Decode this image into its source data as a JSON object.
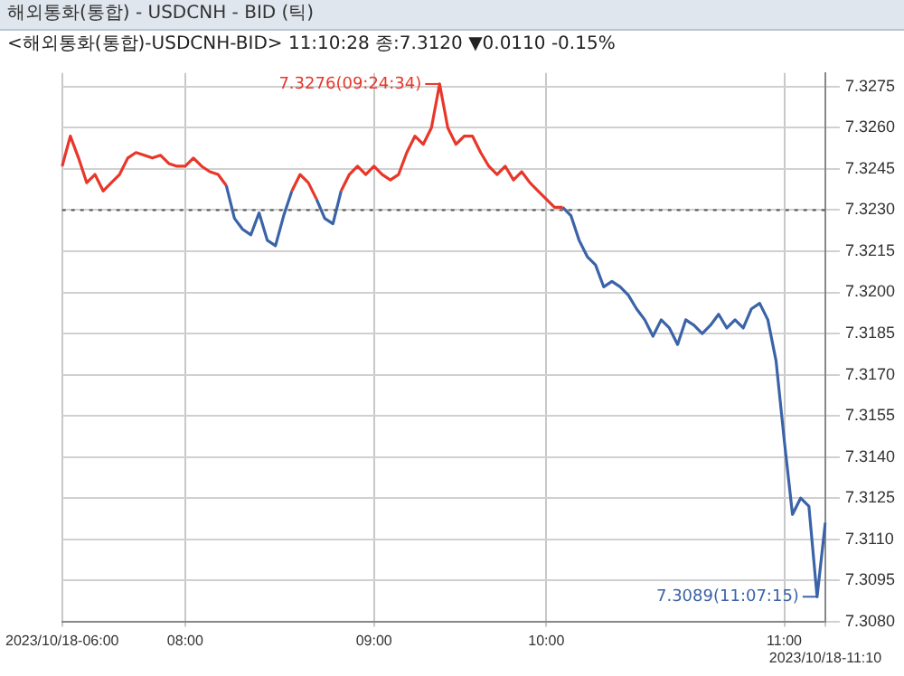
{
  "chart_data": {
    "type": "line",
    "title": "해외통화(통합) - USDCNH - BID (틱)",
    "subtitle": "<해외통화(통합)-USDCNH-BID> 11:10:28 종:7.3120 ▼0.0110 -0.15%",
    "categories": [
      "2023/10/18-06:00",
      null,
      null,
      null,
      null,
      null,
      null,
      null,
      null,
      null,
      null,
      null,
      null,
      null,
      null,
      "08:00",
      null,
      null,
      null,
      null,
      null,
      null,
      null,
      null,
      null,
      null,
      null,
      null,
      null,
      null,
      null,
      null,
      null,
      null,
      null,
      null,
      null,
      null,
      "09:00",
      null,
      null,
      null,
      null,
      null,
      null,
      null,
      null,
      null,
      null,
      null,
      null,
      null,
      null,
      null,
      null,
      null,
      null,
      null,
      null,
      "10:00",
      null,
      null,
      null,
      null,
      null,
      null,
      null,
      null,
      null,
      null,
      null,
      null,
      null,
      null,
      null,
      null,
      null,
      null,
      null,
      null,
      null,
      null,
      null,
      null,
      null,
      null,
      null,
      null,
      "11:00",
      null,
      null,
      null,
      null,
      "2023/10/18-11:10"
    ],
    "series": [
      {
        "color": "#e8372a",
        "values": [
          7.3246,
          7.3257,
          7.3249,
          7.324,
          7.3243,
          7.3237,
          7.324,
          7.3243,
          7.3249,
          7.3251,
          7.325,
          7.3249,
          7.325,
          7.3247,
          7.3246,
          7.3246,
          7.3249,
          7.3246,
          7.3244,
          7.3243,
          7.3239,
          null,
          null,
          null,
          null,
          null,
          null,
          null,
          7.3237,
          7.3243,
          7.324,
          7.3234,
          null,
          null,
          7.3237,
          7.3243,
          7.3246,
          7.3243,
          7.3246,
          7.3243,
          7.3241,
          7.3243,
          7.3251,
          7.3257,
          7.3254,
          7.326,
          7.3276,
          7.326,
          7.3254,
          7.3257,
          7.3257,
          7.3251,
          7.3246,
          7.3243,
          7.3246,
          7.3241,
          7.3244,
          7.324,
          7.3237,
          7.3234,
          7.3231,
          7.3231,
          null,
          null,
          null,
          null,
          null,
          null,
          null,
          null,
          null,
          null,
          null,
          null,
          null,
          null,
          null,
          null,
          null,
          null,
          null,
          null,
          null,
          null,
          null,
          null,
          null,
          null,
          null,
          null,
          null,
          null,
          null,
          null
        ]
      },
      {
        "color": "#3b63a8",
        "values": [
          null,
          null,
          null,
          null,
          null,
          null,
          null,
          null,
          null,
          null,
          null,
          null,
          null,
          null,
          null,
          null,
          null,
          null,
          null,
          null,
          7.3239,
          7.3227,
          7.3223,
          7.3221,
          7.3229,
          7.3219,
          7.3217,
          7.3228,
          7.3237,
          null,
          null,
          7.3234,
          7.3227,
          7.3225,
          7.3237,
          null,
          null,
          null,
          null,
          null,
          null,
          null,
          null,
          null,
          null,
          null,
          null,
          null,
          null,
          null,
          null,
          null,
          null,
          null,
          null,
          null,
          null,
          null,
          null,
          null,
          null,
          7.3231,
          7.3228,
          7.3219,
          7.3213,
          7.321,
          7.3202,
          7.3204,
          7.3202,
          7.3199,
          7.3194,
          7.319,
          7.3184,
          7.319,
          7.3187,
          7.3181,
          7.319,
          7.3188,
          7.3185,
          7.3188,
          7.3192,
          7.3187,
          7.319,
          7.3187,
          7.3194,
          7.3196,
          7.319,
          7.3175,
          7.3146,
          7.3119,
          7.3125,
          7.3122,
          7.3089,
          7.3116
        ]
      }
    ],
    "ylim": [
      7.308,
      7.328
    ],
    "yticks": [
      {
        "value": 7.308,
        "label": "7.3080"
      },
      {
        "value": 7.3095,
        "label": "7.3095"
      },
      {
        "value": 7.311,
        "label": "7.3110"
      },
      {
        "value": 7.3125,
        "label": "7.3125"
      },
      {
        "value": 7.314,
        "label": "7.3140"
      },
      {
        "value": 7.3155,
        "label": "7.3155"
      },
      {
        "value": 7.317,
        "label": "7.3170"
      },
      {
        "value": 7.3185,
        "label": "7.3185"
      },
      {
        "value": 7.32,
        "label": "7.3200"
      },
      {
        "value": 7.3215,
        "label": "7.3215"
      },
      {
        "value": 7.323,
        "label": "7.3230"
      },
      {
        "value": 7.3245,
        "label": "7.3245"
      },
      {
        "value": 7.326,
        "label": "7.3260"
      },
      {
        "value": 7.3275,
        "label": "7.3275"
      }
    ],
    "ref_lines": [
      {
        "axis": "y",
        "value": 7.323,
        "color": "#555555",
        "line_style": "dotted"
      }
    ],
    "annotations": [
      "7.3276(09:24:34)",
      "7.3089(11:07:15)"
    ],
    "grid": true,
    "legend": false
  }
}
